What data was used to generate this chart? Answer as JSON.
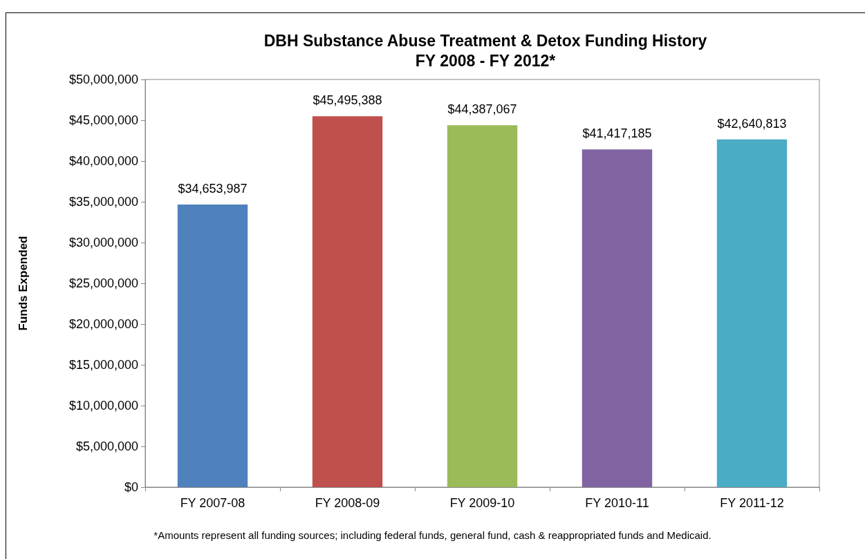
{
  "chart_data": {
    "type": "bar",
    "title": "DBH Substance Abuse Treatment & Detox Funding History",
    "subtitle": "FY 2008 - FY 2012*",
    "ylabel": "Funds Expended",
    "categories": [
      "FY 2007-08",
      "FY 2008-09",
      "FY 2009-10",
      "FY 2010-11",
      "FY 2011-12"
    ],
    "values": [
      34653987,
      45495388,
      44387067,
      41417185,
      42640813
    ],
    "colors": [
      "#4f81bd",
      "#c0504d",
      "#9bbb59",
      "#8064a2",
      "#4bacc6"
    ],
    "value_labels": [
      "$34,653,987",
      "$45,495,388",
      "$44,387,067",
      "$41,417,185",
      "$42,640,813"
    ],
    "ylim": [
      0,
      50000000
    ],
    "yticks": [
      {
        "value": 0,
        "label": "$0"
      },
      {
        "value": 5000000,
        "label": "$5,000,000"
      },
      {
        "value": 10000000,
        "label": "$10,000,000"
      },
      {
        "value": 15000000,
        "label": "$15,000,000"
      },
      {
        "value": 20000000,
        "label": "$20,000,000"
      },
      {
        "value": 25000000,
        "label": "$25,000,000"
      },
      {
        "value": 30000000,
        "label": "$30,000,000"
      },
      {
        "value": 35000000,
        "label": "$35,000,000"
      },
      {
        "value": 40000000,
        "label": "$40,000,000"
      },
      {
        "value": 45000000,
        "label": "$45,000,000"
      },
      {
        "value": 50000000,
        "label": "$50,000,000"
      }
    ],
    "grid": false,
    "annotations": [
      "*Amounts represent all funding sources; including federal funds, general fund, cash & reappropriated funds and Medicaid."
    ]
  }
}
